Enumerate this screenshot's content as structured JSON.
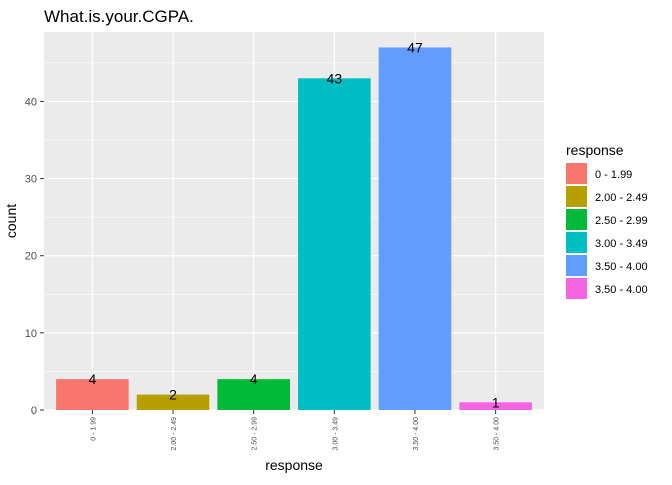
{
  "chart_data": {
    "type": "bar",
    "title": "What.is.your.CGPA.",
    "xlabel": "response",
    "ylabel": "count",
    "categories": [
      "0 - 1.99",
      "2.00 - 2.49",
      "2.50 - 2.99",
      "3.00 - 3.49",
      "3.50 - 4.00",
      "3.50 - 4.00"
    ],
    "values": [
      4,
      2,
      4,
      43,
      47,
      1
    ],
    "colors": [
      "#F8766D",
      "#B79F00",
      "#00BA38",
      "#00BFC4",
      "#619CFF",
      "#F564E3"
    ],
    "ylim": [
      0,
      49
    ],
    "yticks": [
      0,
      10,
      20,
      30,
      40
    ],
    "grid": true,
    "legend": {
      "title": "response",
      "position": "right",
      "entries": [
        "0 - 1.99",
        "2.00 - 2.49",
        "2.50 - 2.99",
        "3.00 - 3.49",
        "3.50 - 4.00",
        "3.50 - 4.00"
      ]
    }
  }
}
